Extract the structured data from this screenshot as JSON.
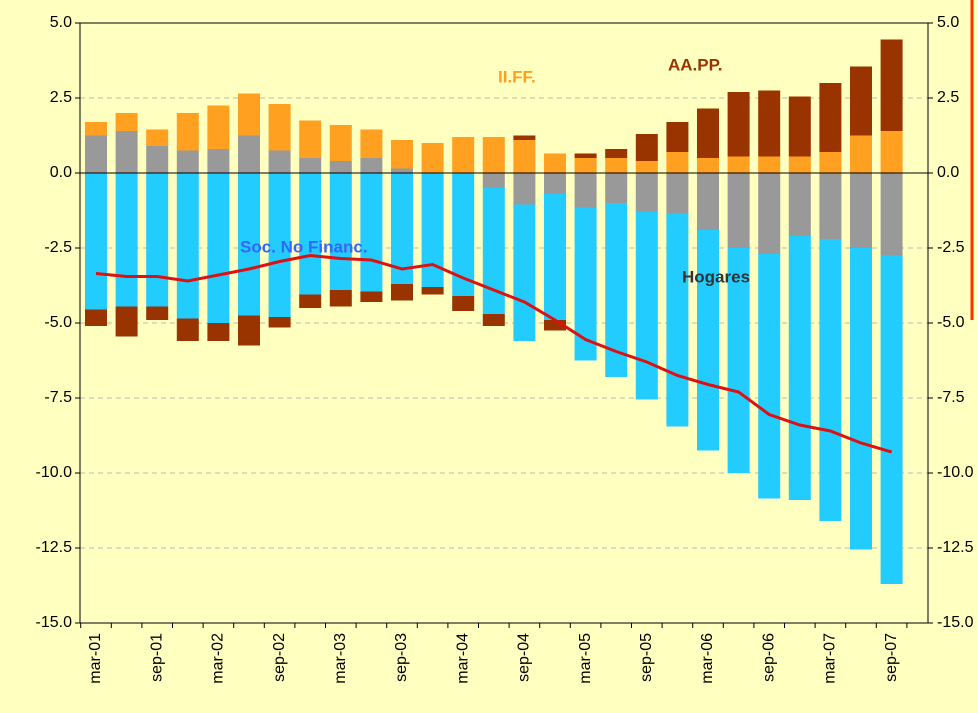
{
  "chart_data": {
    "type": "bar",
    "categories": [
      "mar-01",
      null,
      "sep-01",
      null,
      "mar-02",
      null,
      "sep-02",
      null,
      "mar-03",
      null,
      "sep-03",
      null,
      "mar-04",
      null,
      "sep-04",
      null,
      "mar-05",
      null,
      "sep-05",
      null,
      "mar-06",
      null,
      "sep-06",
      null,
      "mar-07",
      null,
      "sep-07"
    ],
    "series": [
      {
        "name": "Hogares",
        "color": "#999999",
        "values": [
          1.25,
          1.4,
          0.9,
          0.75,
          0.8,
          1.25,
          0.75,
          0.5,
          0.4,
          0.5,
          0.15,
          0,
          0,
          -0.5,
          -1.05,
          -0.7,
          -1.15,
          -1.0,
          -1.3,
          -1.35,
          -1.9,
          -2.5,
          -2.7,
          -2.1,
          -2.2,
          -2.5,
          -2.75
        ]
      },
      {
        "name": "II.FF.",
        "color": "#FFA020",
        "values": [
          0.45,
          0.6,
          0.55,
          1.25,
          1.45,
          1.4,
          1.55,
          1.25,
          1.2,
          0.95,
          0.95,
          1.0,
          1.2,
          1.2,
          1.1,
          0.65,
          0.5,
          0.5,
          0.4,
          0.7,
          0.5,
          0.55,
          0.55,
          0.55,
          0.7,
          1.25,
          1.4
        ]
      },
      {
        "name": "Soc. No Financ.",
        "color": "#22CCFF",
        "values": [
          -4.55,
          -4.45,
          -4.45,
          -4.85,
          -5.0,
          -4.75,
          -4.8,
          -4.05,
          -3.9,
          -3.95,
          -3.7,
          -3.8,
          -4.1,
          -4.2,
          -4.55,
          -4.2,
          -5.1,
          -5.8,
          -6.25,
          -7.1,
          -7.35,
          -7.5,
          -8.15,
          -8.8,
          -9.4,
          -10.05,
          -10.95
        ]
      },
      {
        "name": "AA.PP.",
        "color": "#993300",
        "values": [
          -0.55,
          -1.0,
          -0.45,
          -0.75,
          -0.6,
          -1.0,
          -0.35,
          -0.45,
          -0.55,
          -0.35,
          -0.55,
          -0.25,
          -0.5,
          -0.4,
          0.15,
          -0.35,
          0.15,
          0.3,
          0.9,
          1.0,
          1.65,
          2.15,
          2.2,
          2.0,
          2.3,
          2.3,
          3.05
        ]
      }
    ],
    "total": {
      "color": "#DD1111",
      "values": [
        -3.35,
        -3.45,
        -3.45,
        -3.6,
        -3.4,
        -3.2,
        -2.95,
        -2.75,
        -2.85,
        -2.9,
        -3.2,
        -3.05,
        -3.5,
        -3.9,
        -4.3,
        -4.9,
        -5.55,
        -5.95,
        -6.3,
        -6.75,
        -7.05,
        -7.3,
        -8.05,
        -8.4,
        -8.6,
        -9.0,
        -9.3
      ]
    },
    "labels": [
      {
        "text": "II.FF.",
        "color": "#FFA020"
      },
      {
        "text": "AA.PP.",
        "color": "#993300"
      },
      {
        "text": "Soc. No Financ.",
        "color": "#3366FF"
      },
      {
        "text": "Hogares",
        "color": "#333333"
      }
    ],
    "ylim": [
      -15,
      5
    ],
    "yticks": [
      {
        "value": -15,
        "label": "-15.0"
      },
      -12.5,
      {
        "value": -10,
        "label": "-10.0"
      },
      -7.5,
      {
        "value": -5,
        "label": "-5.0"
      },
      -2.5,
      {
        "value": 0,
        "label": "0.0"
      },
      2.5,
      {
        "value": 5,
        "label": "5.0"
      }
    ],
    "grid": true
  }
}
